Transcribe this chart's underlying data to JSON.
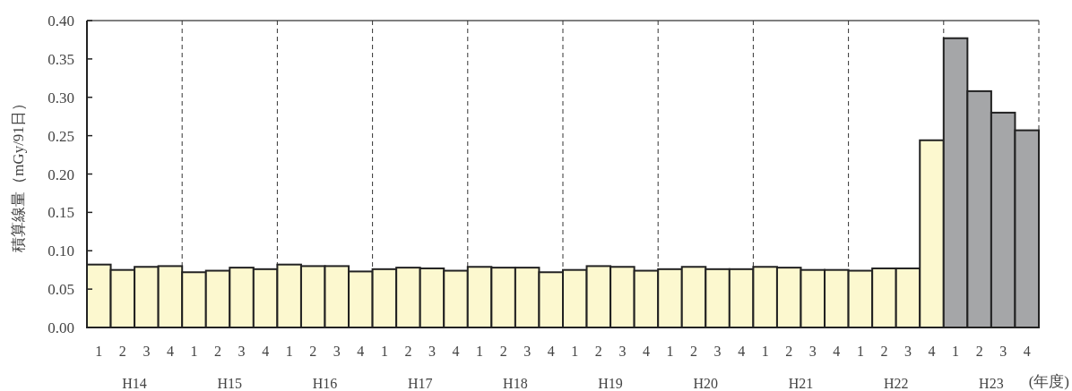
{
  "chart_data": {
    "type": "bar",
    "ylabel": "積算線量（mGy/91日）",
    "xlabel": "(年度)",
    "categories": [
      "1",
      "2",
      "3",
      "4",
      "1",
      "2",
      "3",
      "4",
      "1",
      "2",
      "3",
      "4",
      "1",
      "2",
      "3",
      "4",
      "1",
      "2",
      "3",
      "4",
      "1",
      "2",
      "3",
      "4",
      "1",
      "2",
      "3",
      "4",
      "1",
      "2",
      "3",
      "4",
      "1",
      "2",
      "3",
      "4",
      "1",
      "2",
      "3",
      "4"
    ],
    "values": [
      0.082,
      0.075,
      0.079,
      0.08,
      0.072,
      0.074,
      0.078,
      0.076,
      0.082,
      0.08,
      0.08,
      0.073,
      0.076,
      0.078,
      0.077,
      0.074,
      0.079,
      0.078,
      0.078,
      0.072,
      0.075,
      0.08,
      0.079,
      0.074,
      0.076,
      0.079,
      0.076,
      0.076,
      0.079,
      0.078,
      0.075,
      0.075,
      0.074,
      0.077,
      0.077,
      0.244,
      0.377,
      0.308,
      0.28,
      0.257
    ],
    "colors": [
      "#fcf8cf",
      "#fcf8cf",
      "#fcf8cf",
      "#fcf8cf",
      "#fcf8cf",
      "#fcf8cf",
      "#fcf8cf",
      "#fcf8cf",
      "#fcf8cf",
      "#fcf8cf",
      "#fcf8cf",
      "#fcf8cf",
      "#fcf8cf",
      "#fcf8cf",
      "#fcf8cf",
      "#fcf8cf",
      "#fcf8cf",
      "#fcf8cf",
      "#fcf8cf",
      "#fcf8cf",
      "#fcf8cf",
      "#fcf8cf",
      "#fcf8cf",
      "#fcf8cf",
      "#fcf8cf",
      "#fcf8cf",
      "#fcf8cf",
      "#fcf8cf",
      "#fcf8cf",
      "#fcf8cf",
      "#fcf8cf",
      "#fcf8cf",
      "#fcf8cf",
      "#fcf8cf",
      "#fcf8cf",
      "#fcf8cf",
      "#a5a6a8",
      "#a5a6a8",
      "#a5a6a8",
      "#a5a6a8"
    ],
    "ylim": [
      0,
      0.4
    ],
    "yticks": [
      {
        "value": 0,
        "label": "0.00"
      },
      {
        "value": 0.05,
        "label": "0.05"
      },
      {
        "value": 0.1,
        "label": "0.10"
      },
      {
        "value": 0.15,
        "label": "0.15"
      },
      {
        "value": 0.2,
        "label": "0.20"
      },
      {
        "value": 0.25,
        "label": "0.25"
      },
      {
        "value": 0.3,
        "label": "0.30"
      },
      {
        "value": 0.35,
        "label": "0.35"
      },
      {
        "value": 0.4,
        "label": "0.40"
      }
    ],
    "grid": "x",
    "annotations": [
      "H14",
      "H15",
      "H16",
      "H17",
      "H18",
      "H19",
      "H20",
      "H21",
      "H22",
      "H23"
    ]
  }
}
